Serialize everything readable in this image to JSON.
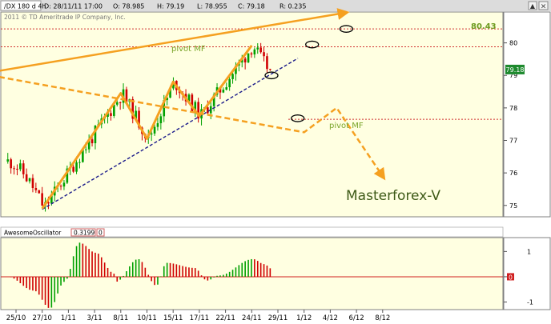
{
  "header": {
    "symbol": "/DX 180 d 4h",
    "date_field": "D: 28/11/11 17:00",
    "open_field": "O: 78.985",
    "high_field": "H: 79.19",
    "low_field": "L: 78.955",
    "close_field": "C: 79.18",
    "range_field": "R: 0.235",
    "copyright": "2011 © TD Ameritrade IP Company, Inc."
  },
  "annotations": {
    "pivot_upper_label": "pivot MF",
    "pivot_lower_label": "pivot MF",
    "pivot_value_label": "80.43",
    "watermark": "Masterforex-V",
    "last_price_tag": "79.18"
  },
  "oscillator": {
    "name": "AwesomeOscillator",
    "value": "0.3199",
    "extra": "0",
    "zero_tag": "0"
  },
  "colors": {
    "chart_bg": "#ffffe1",
    "up_candle": "#00a000",
    "down_candle": "#d00000",
    "zigzag": "#f5a020",
    "trendline": "#1a1a8a",
    "pivot_line": "#d03030",
    "price_tag": "#1e8a2e"
  },
  "chart_data": [
    {
      "type": "candlestick",
      "title": "/DX 180 d 4h",
      "x_tick_labels": [
        "25/10",
        "27/10",
        "1/11",
        "3/11",
        "8/11",
        "10/11",
        "15/11",
        "17/11",
        "22/11",
        "24/11",
        "29/11",
        "1/12",
        "4/12",
        "6/12",
        "8/12"
      ],
      "y_tick_labels": [
        75,
        76,
        77,
        78,
        79,
        80
      ],
      "ylim": [
        74.65,
        80.95
      ],
      "grid": false,
      "reference_lines": {
        "pivot_upper": 80.43,
        "pivot_mid": 79.88,
        "pivot_lower": 77.65
      },
      "last_close": 79.18,
      "trendline": [
        {
          "x": "27/10",
          "y": 74.88
        },
        {
          "x": "29/11",
          "y": 79.38
        }
      ],
      "zigzag": [
        {
          "x": "27/10",
          "y": 74.9
        },
        {
          "x": "8/11",
          "y": 78.45
        },
        {
          "x": "10/11",
          "y": 77.05
        },
        {
          "x": "15/11",
          "y": 78.8
        },
        {
          "x": "17/11",
          "y": 77.75
        },
        {
          "x": "24/11",
          "y": 79.92
        }
      ],
      "projection_up": [
        {
          "x": "28/11",
          "y": 79.05
        },
        {
          "x": "4/12",
          "y": 80.9
        }
      ],
      "projection_down": [
        {
          "x": "28/11",
          "y": 79.05
        },
        {
          "x": "1/12",
          "y": 77.25
        },
        {
          "x": "4/12",
          "y": 78.0
        },
        {
          "x": "8/12",
          "y": 75.9
        }
      ],
      "markers": [
        {
          "x": "29/11",
          "y": 79.0
        },
        {
          "x": "1/12",
          "y": 77.68
        },
        {
          "x": "1/12",
          "y": 79.95
        },
        {
          "x": "4/12",
          "y": 80.43
        }
      ]
    },
    {
      "type": "bar",
      "title": "AwesomeOscillator",
      "y_tick_labels": [
        1,
        0,
        -1
      ],
      "ylim": [
        -1.3,
        1.55
      ],
      "last_value": 0.3199
    }
  ]
}
